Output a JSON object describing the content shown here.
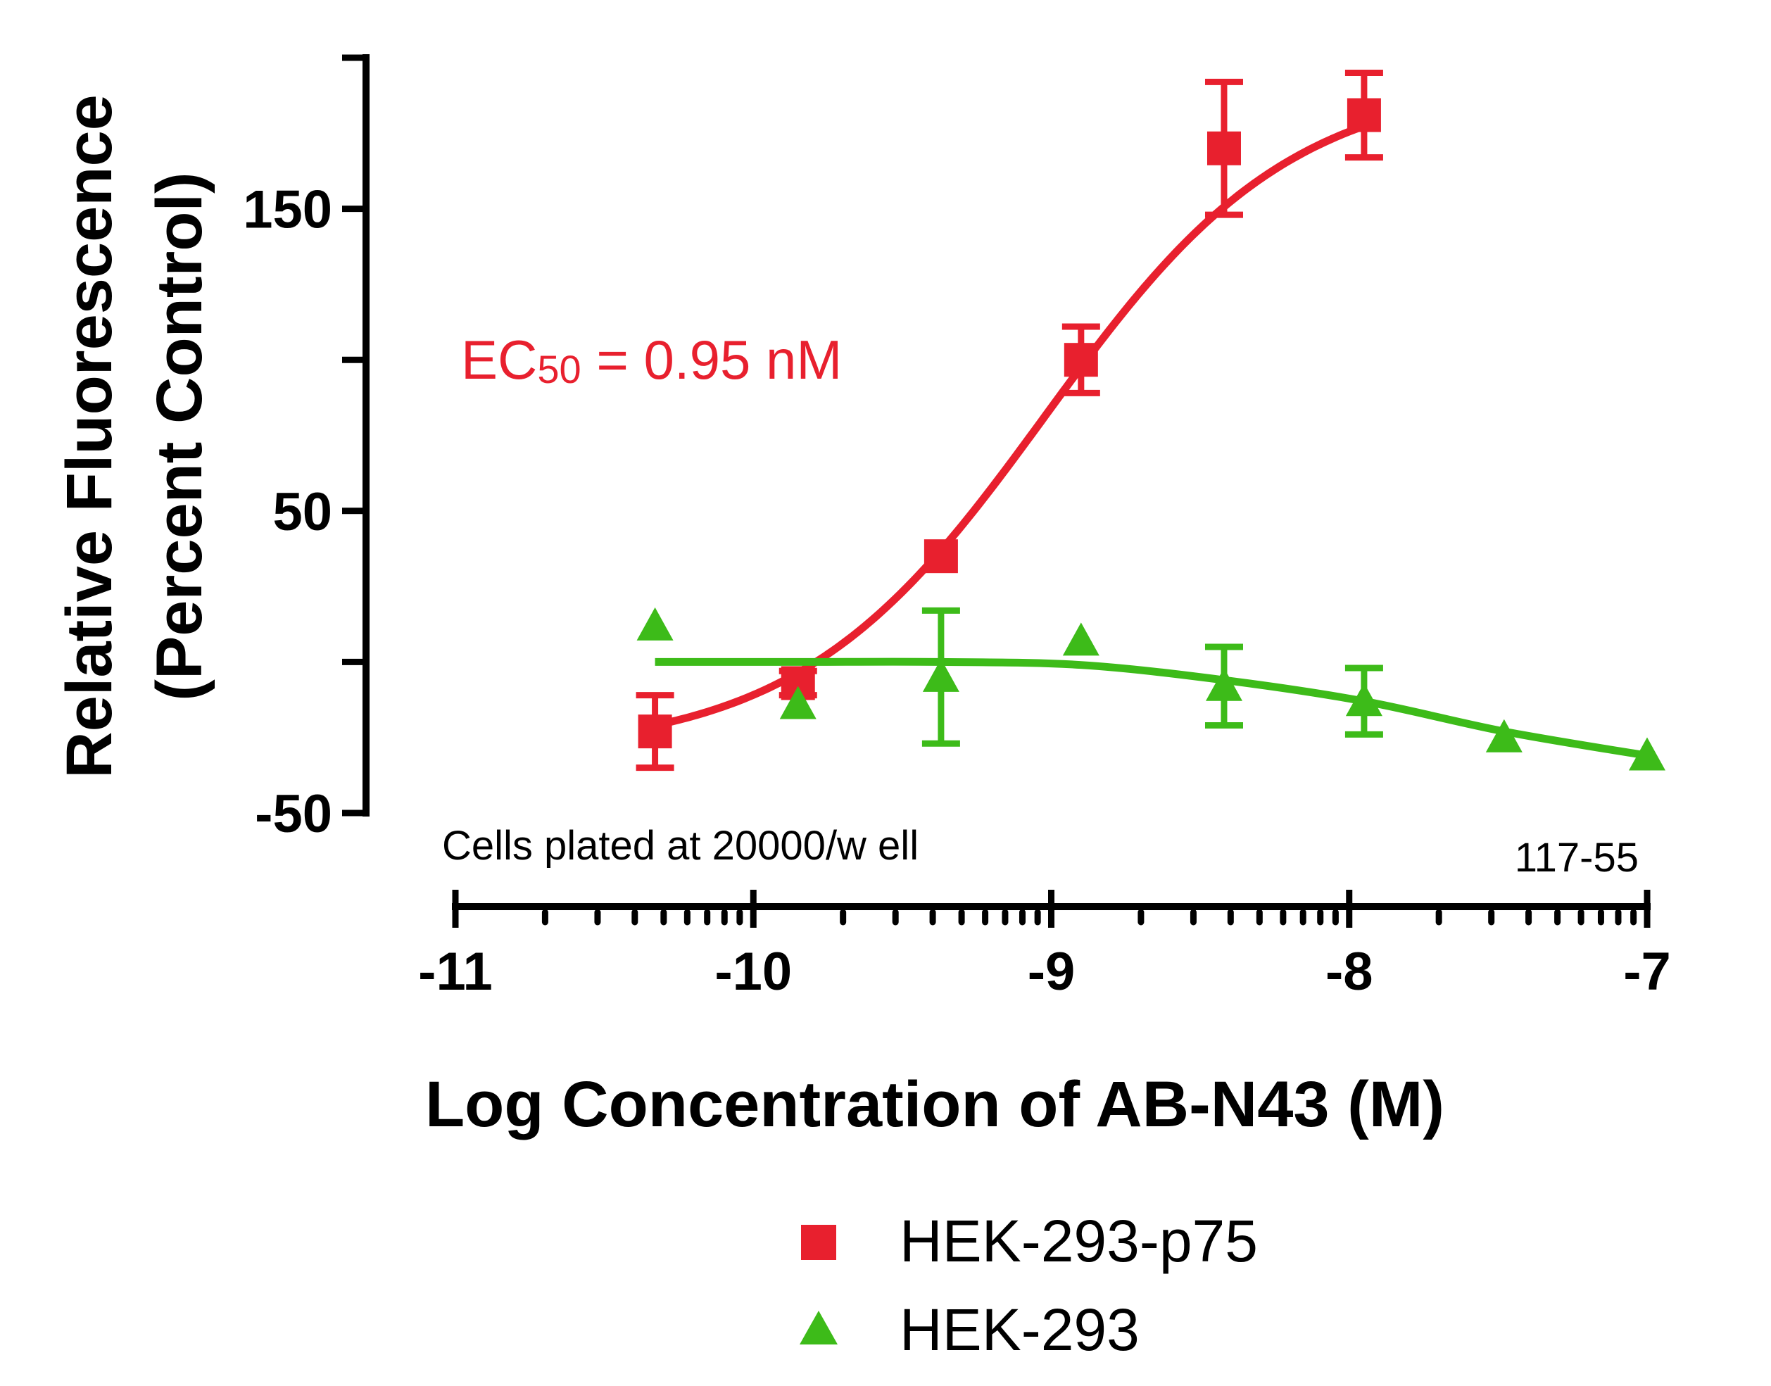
{
  "chart_data": {
    "type": "scatter",
    "xlabel": "Log Concentration of AB-N43 (M)",
    "ylabel_line1": "Relative Fluorescence",
    "ylabel_line2": "(Percent Control)",
    "xlim": [
      -11,
      -7
    ],
    "ylim": [
      -50,
      200
    ],
    "x_ticks": [
      -11,
      -10,
      -9,
      -8,
      -7
    ],
    "x_tick_labels": [
      "-11",
      "-10",
      "-9",
      "-8",
      "-7"
    ],
    "x_scale": "log concentration (decade minor ticks)",
    "y_ticks": [
      -50,
      0,
      50,
      100,
      150,
      200
    ],
    "y_tick_labels": [
      "-50",
      "",
      "50",
      "",
      "150",
      ""
    ],
    "annotations": {
      "ec50_prefix": "EC",
      "ec50_sub": "50",
      "ec50_suffix": " = 0.95 nM",
      "cells_note": "Cells plated at 20000/w ell",
      "plate_id": "117-55"
    },
    "series": [
      {
        "name": "HEK-293-p75",
        "color": "#e8202e",
        "marker": "square",
        "x": [
          -10.33,
          -9.85,
          -9.37,
          -8.9,
          -8.42,
          -7.95
        ],
        "y": [
          -23,
          -7,
          35,
          100,
          170,
          181
        ],
        "err": [
          12,
          4,
          0,
          11,
          22,
          14
        ],
        "fit": {
          "bottom": -30,
          "top": 193,
          "logEC50": -9.02,
          "hill": 1.05
        }
      },
      {
        "name": "HEK-293",
        "color": "#3dbb19",
        "marker": "triangle",
        "x": [
          -10.33,
          -9.85,
          -9.37,
          -8.9,
          -8.42,
          -7.95,
          -7.48,
          -7.0
        ],
        "y": [
          12,
          -14,
          -5,
          7,
          -8,
          -13,
          -25,
          -31
        ],
        "err": [
          0,
          0,
          22,
          0,
          13,
          11,
          0,
          0
        ],
        "fit": [
          [
            -10.33,
            0
          ],
          [
            -9.85,
            0
          ],
          [
            -9.37,
            0
          ],
          [
            -8.9,
            -1
          ],
          [
            -8.42,
            -6
          ],
          [
            -7.95,
            -13
          ],
          [
            -7.48,
            -23
          ],
          [
            -7.0,
            -31
          ]
        ]
      }
    ],
    "legend": {
      "placement": "bottom-center",
      "entries": [
        "HEK-293-p75",
        "HEK-293"
      ]
    }
  }
}
